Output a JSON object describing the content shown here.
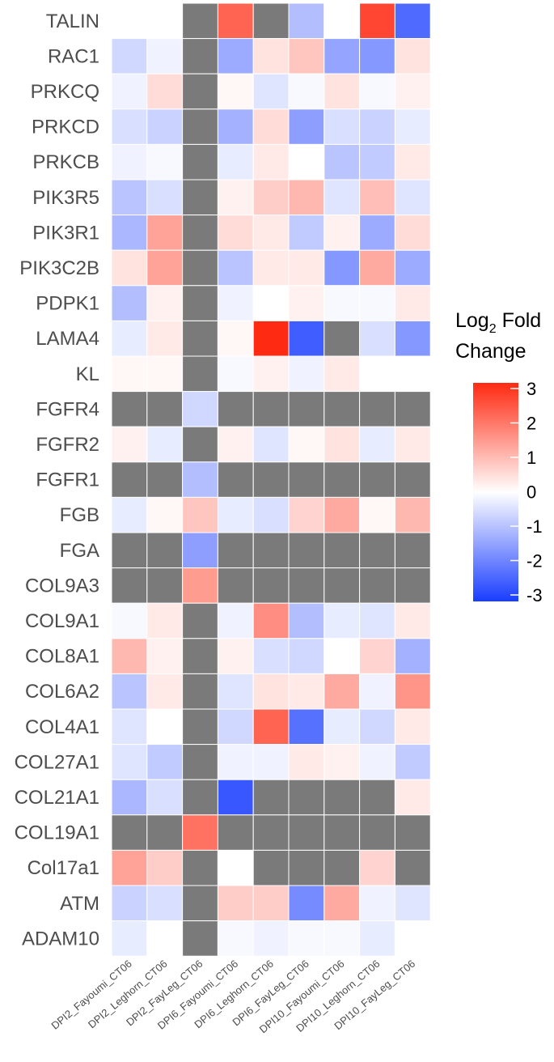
{
  "chart_data": {
    "type": "heatmap",
    "rows": [
      "TALIN",
      "RAC1",
      "PRKCQ",
      "PRKCD",
      "PRKCB",
      "PIK3R5",
      "PIK3R1",
      "PIK3C2B",
      "PDPK1",
      "LAMA4",
      "KL",
      "FGFR4",
      "FGFR2",
      "FGFR1",
      "FGB",
      "FGA",
      "COL9A3",
      "COL9A1",
      "COL8A1",
      "COL6A2",
      "COL4A1",
      "COL27A1",
      "COL21A1",
      "COL19A1",
      "Col17a1",
      "ATM",
      "ADAM10"
    ],
    "columns": [
      "DPI2_Fayoumi_CT06",
      "DPI2_Leghorn_CT06",
      "DPI2_FayLeg_CT06",
      "DPI6_Fayoumi_CT06",
      "DPI6_Leghorn_CT06",
      "DPI6_FayLeg_CT06",
      "DPI10_Fayoumi_CT06",
      "DPI10_Leghorn_CT06",
      "DPI10_FayLeg_CT06"
    ],
    "values": [
      [
        0,
        0,
        null,
        2.2,
        null,
        -1.0,
        0,
        2.6,
        -2.3
      ],
      [
        -0.6,
        -0.2,
        null,
        -1.3,
        0.4,
        0.8,
        -1.4,
        -1.6,
        0.4
      ],
      [
        -0.2,
        0.5,
        null,
        0.1,
        -0.4,
        -0.1,
        0.4,
        -0.1,
        0.2
      ],
      [
        -0.5,
        -0.7,
        null,
        -1.2,
        0.5,
        -1.5,
        -0.5,
        -0.7,
        -0.3
      ],
      [
        -0.2,
        -0.1,
        null,
        -0.3,
        0.3,
        0,
        -0.9,
        -0.8,
        0.3
      ],
      [
        -0.9,
        -0.5,
        null,
        0.2,
        0.7,
        1.0,
        -0.4,
        0.9,
        -0.4
      ],
      [
        -1.1,
        1.3,
        null,
        0.5,
        0.3,
        -0.8,
        0.2,
        -1.3,
        0.5
      ],
      [
        0.4,
        1.3,
        null,
        -0.9,
        0.3,
        0.3,
        -1.6,
        1.2,
        -1.3
      ],
      [
        -1.0,
        0.2,
        null,
        -0.2,
        0,
        0.2,
        -0.1,
        -0.1,
        0.3
      ],
      [
        -0.3,
        0.3,
        null,
        0.1,
        3.0,
        -2.5,
        null,
        -0.5,
        -1.6
      ],
      [
        0.1,
        0.1,
        null,
        -0.1,
        0.2,
        -0.2,
        0.3,
        0,
        0
      ],
      [
        null,
        null,
        -0.6,
        null,
        null,
        null,
        null,
        null,
        null
      ],
      [
        0.2,
        -0.3,
        null,
        0.2,
        -0.4,
        0.1,
        0.4,
        -0.3,
        0.3
      ],
      [
        null,
        null,
        -1.0,
        null,
        null,
        null,
        null,
        null,
        null
      ],
      [
        -0.3,
        0.1,
        0.8,
        -0.3,
        -0.5,
        0.6,
        1.2,
        0.1,
        1.0
      ],
      [
        null,
        null,
        -1.5,
        null,
        null,
        null,
        null,
        null,
        null
      ],
      [
        null,
        null,
        1.4,
        null,
        null,
        null,
        null,
        null,
        null
      ],
      [
        -0.1,
        0.3,
        null,
        -0.2,
        1.6,
        -1.0,
        -0.3,
        -0.4,
        0.3
      ],
      [
        1.0,
        0.2,
        null,
        0.2,
        -0.5,
        -0.6,
        0,
        0.6,
        -1.2
      ],
      [
        -0.9,
        0.3,
        null,
        -0.4,
        0.4,
        0.3,
        1.2,
        -0.2,
        1.5
      ],
      [
        -0.4,
        0,
        null,
        -0.6,
        2.2,
        -2.2,
        -0.3,
        -0.6,
        0.3
      ],
      [
        -0.4,
        -0.8,
        null,
        -0.2,
        -0.2,
        0.3,
        0.2,
        -0.2,
        -0.8
      ],
      [
        -1.1,
        -0.5,
        null,
        -2.6,
        null,
        null,
        null,
        null,
        0.3
      ],
      [
        null,
        null,
        2.0,
        null,
        null,
        null,
        null,
        null,
        null
      ],
      [
        1.3,
        0.7,
        null,
        0,
        null,
        null,
        null,
        0.6,
        null
      ],
      [
        -0.7,
        -0.5,
        null,
        0.7,
        0.7,
        -1.8,
        1.2,
        -0.2,
        -0.4
      ],
      [
        -0.3,
        0,
        null,
        -0.1,
        -0.2,
        -0.1,
        -0.1,
        -0.3,
        0
      ]
    ],
    "legend": {
      "title_main": "Log",
      "title_sub": "2",
      "title_after": " Fold",
      "title_line2": "Change",
      "ticks": [
        "3",
        "2",
        "1",
        "0",
        "-1",
        "-2",
        "-3"
      ],
      "range": [
        -3,
        3
      ]
    },
    "colors": {
      "low": "#1a3dff",
      "mid": "#ffffff",
      "high": "#ff2a12",
      "missing": "#7a7a7a"
    }
  }
}
